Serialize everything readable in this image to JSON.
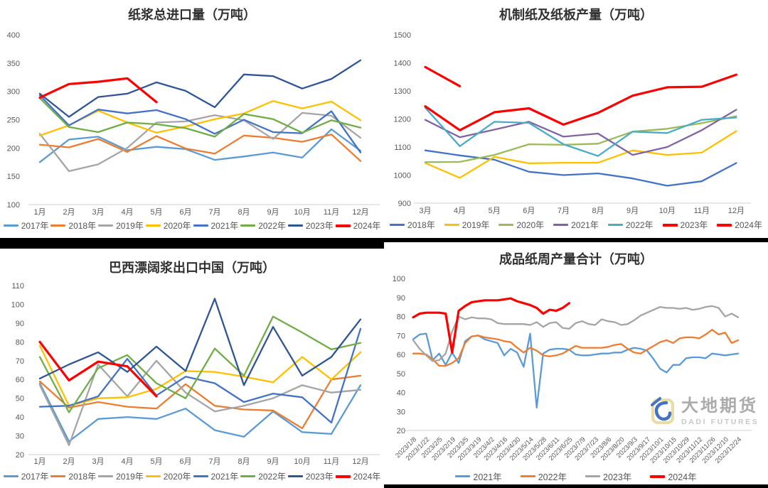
{
  "watermark": {
    "name": "大地期货",
    "subtitle": "DADI FUTURES"
  },
  "chart_data": [
    {
      "id": "pulp-total-imports",
      "type": "line",
      "title": "纸浆总进口量（万吨）",
      "categories": [
        "1月",
        "2月",
        "3月",
        "4月",
        "5月",
        "6月",
        "7月",
        "8月",
        "9月",
        "10月",
        "11月",
        "12月"
      ],
      "ylim": [
        100,
        400
      ],
      "ytick_step": 50,
      "grid": false,
      "legend_position": "bottom",
      "series": [
        {
          "name": "2017年",
          "color": "#5B9BD5",
          "values": [
            175,
            215,
            220,
            196,
            202,
            198,
            179,
            185,
            192,
            183,
            233,
            195
          ]
        },
        {
          "name": "2018年",
          "color": "#ED7D31",
          "values": [
            206,
            201,
            216,
            193,
            221,
            199,
            190,
            222,
            218,
            211,
            224,
            177
          ]
        },
        {
          "name": "2019年",
          "color": "#A5A5A5",
          "values": [
            225,
            159,
            171,
            200,
            245,
            247,
            258,
            249,
            216,
            262,
            257,
            218
          ]
        },
        {
          "name": "2020年",
          "color": "#FFC000",
          "values": [
            222,
            240,
            266,
            245,
            227,
            238,
            251,
            261,
            283,
            270,
            282,
            249
          ]
        },
        {
          "name": "2021年",
          "color": "#4472C4",
          "values": [
            293,
            240,
            268,
            261,
            267,
            251,
            225,
            250,
            228,
            226,
            265,
            192
          ]
        },
        {
          "name": "2022年",
          "color": "#70AD47",
          "values": [
            288,
            237,
            228,
            245,
            242,
            235,
            220,
            260,
            251,
            227,
            249,
            236
          ]
        },
        {
          "name": "2023年",
          "color": "#2F5597",
          "values": [
            296,
            255,
            290,
            296,
            316,
            301,
            272,
            330,
            327,
            305,
            322,
            355
          ]
        },
        {
          "name": "2024年",
          "color": "#FF0000",
          "values": [
            289,
            313,
            317,
            323,
            281
          ]
        }
      ]
    },
    {
      "id": "machine-paper-output",
      "type": "line",
      "title": "机制纸及纸板产量（万吨）",
      "categories": [
        "3月",
        "4月",
        "5月",
        "6月",
        "7月",
        "8月",
        "9月",
        "10月",
        "11月",
        "12月"
      ],
      "ylim": [
        900,
        1500
      ],
      "ytick_step": 100,
      "grid": false,
      "legend_position": "bottom",
      "series": [
        {
          "name": "2018年",
          "color": "#4472C4",
          "values": [
            1088,
            1070,
            1055,
            1012,
            1000,
            1006,
            988,
            962,
            978,
            1043
          ]
        },
        {
          "name": "2019年",
          "color": "#FFC000",
          "values": [
            1043,
            990,
            1065,
            1042,
            1044,
            1044,
            1088,
            1072,
            1080,
            1157
          ]
        },
        {
          "name": "2020年",
          "color": "#9BBB59",
          "values": [
            1046,
            1047,
            1072,
            1110,
            1108,
            1112,
            1155,
            1165,
            1185,
            1210
          ]
        },
        {
          "name": "2021年",
          "color": "#8064A2",
          "values": [
            1197,
            1135,
            1162,
            1190,
            1137,
            1148,
            1072,
            1100,
            1160,
            1233
          ]
        },
        {
          "name": "2022年",
          "color": "#4BACC6",
          "values": [
            1240,
            1103,
            1190,
            1186,
            1110,
            1068,
            1155,
            1150,
            1197,
            1205
          ]
        },
        {
          "name": "2023年",
          "color": "#FF0000",
          "values": [
            1245,
            1160,
            1224,
            1238,
            1180,
            1222,
            1283,
            1313,
            1315,
            1358
          ]
        },
        {
          "name": "2024年",
          "color": "#FF0000",
          "values": [
            1385,
            1317
          ]
        }
      ]
    },
    {
      "id": "brazil-bhkp-exports-to-china",
      "type": "line",
      "title": "巴西漂阔浆出口中国（万吨）",
      "categories": [
        "1月",
        "2月",
        "3月",
        "4月",
        "5月",
        "6月",
        "7月",
        "8月",
        "9月",
        "10月",
        "11月",
        "12月"
      ],
      "ylim": [
        20,
        110
      ],
      "ytick_step": 10,
      "grid": false,
      "legend_position": "bottom",
      "series": [
        {
          "name": "2017年",
          "color": "#5B9BD5",
          "values": [
            58,
            27,
            39,
            40,
            39,
            44.5,
            33,
            29.5,
            43,
            32,
            31,
            57
          ]
        },
        {
          "name": "2018年",
          "color": "#ED7D31",
          "values": [
            59,
            45,
            48,
            45.5,
            44.5,
            57.5,
            46,
            44,
            43.5,
            34,
            60,
            62
          ]
        },
        {
          "name": "2019年",
          "color": "#A5A5A5",
          "values": [
            57,
            25,
            68,
            51,
            70,
            53,
            43,
            46,
            50,
            57,
            53,
            54.5
          ]
        },
        {
          "name": "2020年",
          "color": "#FFC000",
          "values": [
            78,
            46,
            50,
            50.5,
            55,
            64.5,
            64,
            61.5,
            58.5,
            72,
            60,
            74.5
          ]
        },
        {
          "name": "2021年",
          "color": "#4472C4",
          "values": [
            45.5,
            46,
            51,
            71,
            51.5,
            61.5,
            58,
            48,
            52.5,
            50.5,
            37,
            87
          ]
        },
        {
          "name": "2022年",
          "color": "#70AD47",
          "values": [
            72,
            42.5,
            66,
            73,
            58,
            50,
            76.5,
            62,
            93.5,
            85,
            76,
            79.5
          ]
        },
        {
          "name": "2023年",
          "color": "#2F5597",
          "values": [
            60.5,
            68,
            74.5,
            64,
            77.5,
            64.5,
            103,
            57,
            88,
            62,
            72,
            92
          ]
        },
        {
          "name": "2024年",
          "color": "#FF0000",
          "values": [
            80,
            59.5,
            69.5,
            67,
            51
          ]
        }
      ]
    },
    {
      "id": "finished-paper-weekly-output",
      "type": "line",
      "title": "成品纸周产量合计（万吨）",
      "x_labels": [
        "2023/1/8",
        "2023/1/22",
        "2023/2/5",
        "2023/2/19",
        "2023/3/5",
        "2023/3/19",
        "2023/4/2",
        "2023/4/16",
        "2023/4/30",
        "2023/5/14",
        "2023/5/28",
        "2023/6/11",
        "2023/6/25",
        "2023/7/9",
        "2023/7/23",
        "2023/8/6",
        "2023/8/20",
        "2023/9/3",
        "2023/9/17",
        "2023/10/1",
        "2023/10/15",
        "2023/10/29",
        "2023/11/12",
        "2023/11/26",
        "2023/12/10",
        "2023/12/24"
      ],
      "points_per_label": 2,
      "n_points": 51,
      "ylim": [
        20,
        100
      ],
      "ytick_step": 10,
      "grid": false,
      "legend_position": "bottom",
      "series": [
        {
          "name": "2021年",
          "color": "#5B9BD5",
          "values": [
            68,
            70.5,
            71,
            57,
            60.5,
            54.5,
            61,
            55.5,
            67,
            69.5,
            70,
            68,
            67,
            66,
            59.5,
            63,
            61,
            53.5,
            71,
            32,
            60.5,
            62.5,
            63,
            63,
            62.5,
            60,
            59.5,
            59.5,
            60,
            60.5,
            60.5,
            61,
            61,
            62.5,
            63.5,
            63,
            62,
            57.5,
            52.5,
            50.5,
            54.5,
            54.5,
            58,
            58.5,
            58.5,
            58,
            60.5,
            60,
            59.5,
            60,
            60.5
          ]
        },
        {
          "name": "2022年",
          "color": "#ED7D31",
          "values": [
            60.5,
            60.5,
            60,
            57.5,
            54,
            54,
            55.5,
            58,
            66,
            69.5,
            70,
            69,
            68.5,
            68,
            67,
            66.5,
            63.5,
            61,
            63.5,
            62,
            59.5,
            59,
            59.5,
            60.5,
            62.5,
            64.5,
            63.5,
            63.5,
            63.5,
            63.5,
            64,
            65,
            65.5,
            63,
            61,
            60.5,
            62.5,
            64.5,
            66.5,
            67.5,
            66,
            68.5,
            69,
            69,
            68.5,
            70.5,
            73,
            70.5,
            71.5,
            66,
            67.5
          ]
        },
        {
          "name": "2023年",
          "color": "#A5A5A5",
          "values": [
            67.5,
            63,
            59.5,
            56.5,
            57,
            60.5,
            72,
            80,
            78.5,
            79.5,
            79,
            79,
            78.5,
            76.5,
            76,
            76,
            76,
            76,
            75.5,
            77,
            74.5,
            76.5,
            77,
            74,
            73.5,
            76.5,
            77.5,
            76,
            75.5,
            78.5,
            77.5,
            77,
            75.5,
            76,
            78,
            80.5,
            82,
            83.5,
            85,
            84.5,
            84.5,
            84,
            84.5,
            83.5,
            84,
            85,
            85.5,
            84.5,
            80,
            81.5,
            79.5
          ]
        },
        {
          "name": "2024年",
          "color": "#FF0000",
          "values": [
            79.5,
            81.5,
            82,
            82,
            82,
            81.5,
            61,
            83,
            85.5,
            87.5,
            88,
            88.5,
            88.5,
            88.5,
            89,
            89.5,
            88,
            87,
            86,
            84.5,
            81.5,
            83.5,
            83,
            84.5,
            87
          ]
        }
      ]
    }
  ]
}
